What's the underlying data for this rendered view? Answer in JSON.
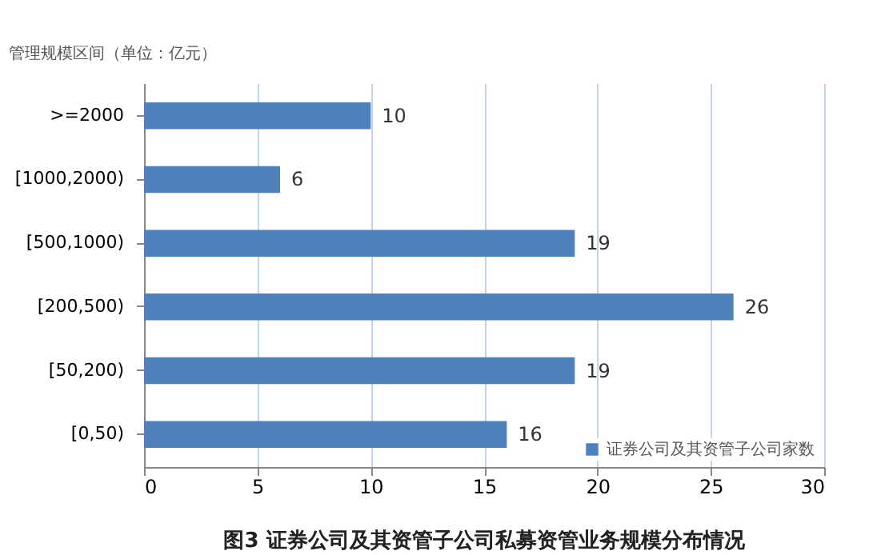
{
  "chart_data": {
    "type": "bar",
    "orientation": "horizontal",
    "title": "图3  证券公司及其资管子公司私募资管业务规模分布情况",
    "ylabel": "管理规模区间（单位：亿元）",
    "categories": [
      ">=2000",
      "[1000,2000)",
      "[500,1000)",
      "[200,500)",
      "[50,200)",
      "[0,50)"
    ],
    "series": [
      {
        "name": "证券公司及其资管子公司家数",
        "color": "#4f81bd",
        "values": [
          10,
          6,
          19,
          26,
          19,
          16
        ]
      }
    ],
    "xlim": [
      0,
      30
    ],
    "xticks": [
      0,
      5,
      10,
      15,
      20,
      25,
      30
    ],
    "grid": "x",
    "legend": "bottom right",
    "data_labels": true
  }
}
